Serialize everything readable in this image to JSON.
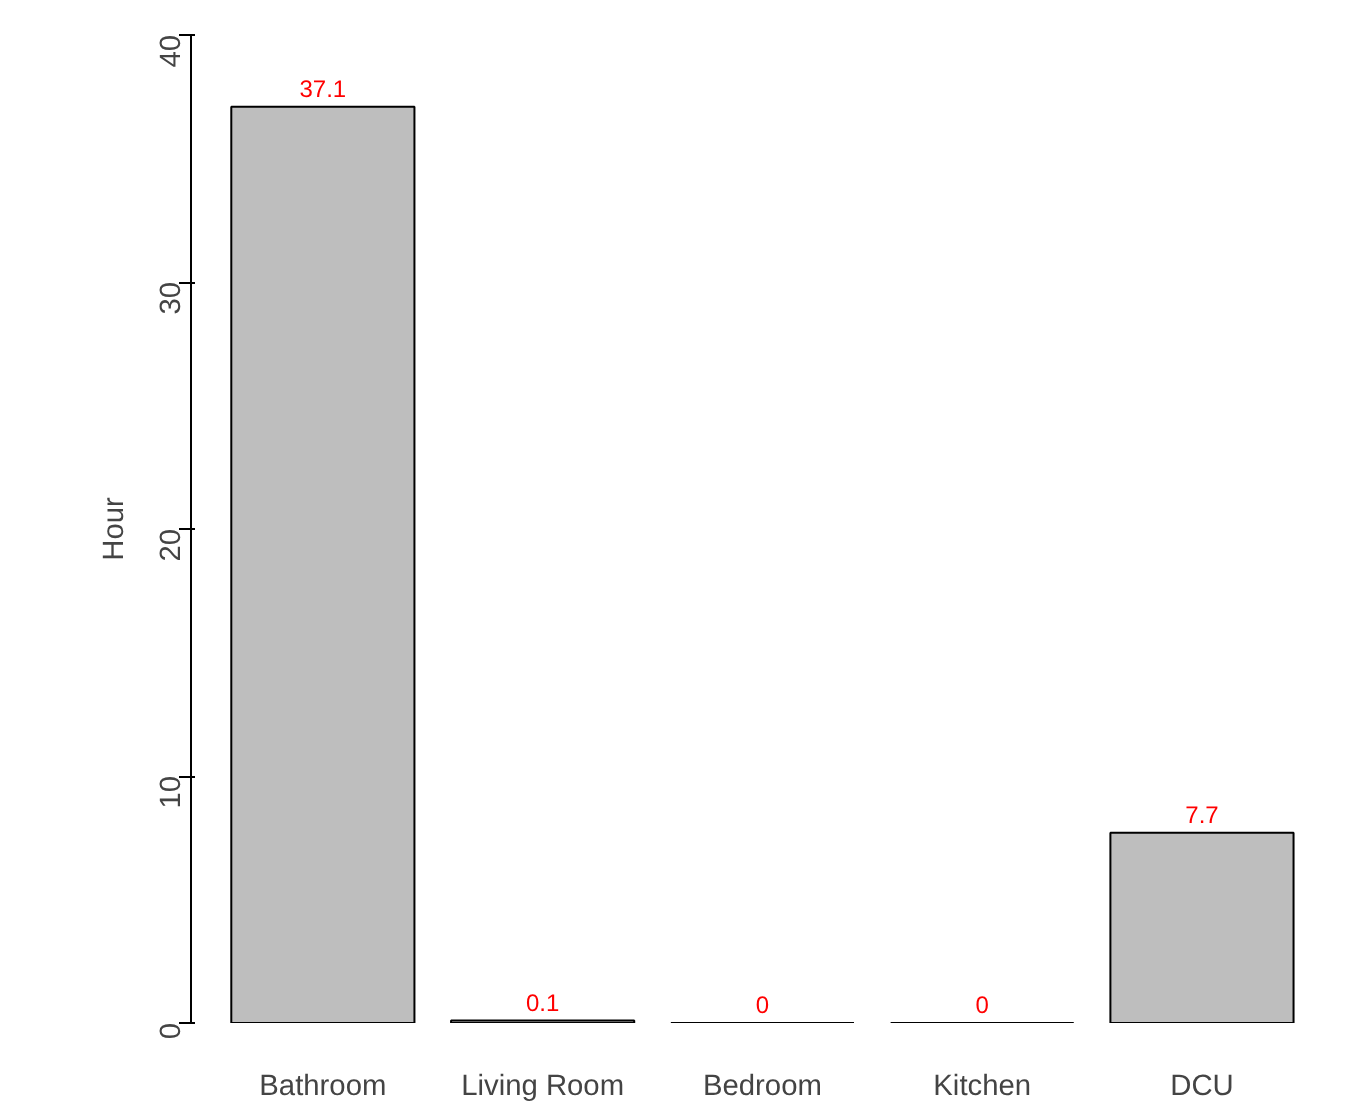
{
  "chart_data": {
    "type": "bar",
    "ylabel": "Hour",
    "categories": [
      "Bathroom",
      "Living Room",
      "Bedroom",
      "Kitchen",
      "DCU"
    ],
    "values": [
      37.1,
      0.1,
      0,
      0,
      7.7
    ],
    "color": "#bebebe",
    "ylim": [
      0,
      40
    ],
    "yticks": [
      0,
      10,
      20,
      30,
      40
    ],
    "grid": false,
    "data_labels": true
  }
}
